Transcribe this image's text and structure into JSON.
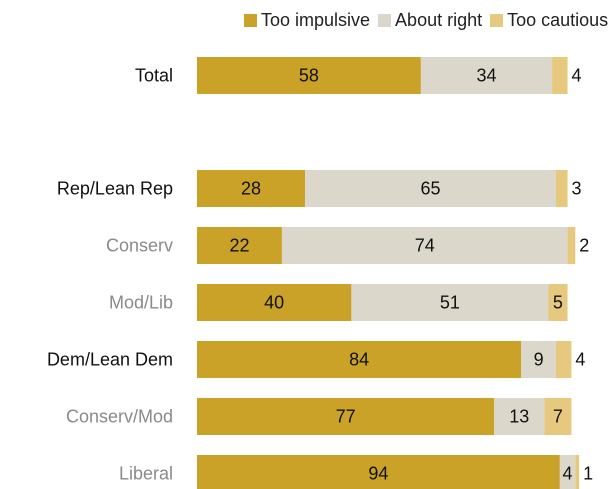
{
  "chart_data": {
    "type": "bar",
    "orientation": "horizontal",
    "stacked": true,
    "title": "",
    "legend_position": "top",
    "categories": [
      "Total",
      "Rep/Lean Rep",
      "Conserv",
      "Mod/Lib",
      "Dem/Lean Dem",
      "Conserv/Mod",
      "Liberal"
    ],
    "category_emphasis": [
      "bold",
      "bold",
      "subgroup",
      "subgroup",
      "bold",
      "subgroup",
      "subgroup"
    ],
    "series": [
      {
        "name": "Too impulsive",
        "color": "#C9A227",
        "values": [
          58,
          28,
          22,
          40,
          84,
          77,
          94
        ]
      },
      {
        "name": "About right",
        "color": "#DBD8CB",
        "values": [
          34,
          65,
          74,
          51,
          9,
          13,
          4
        ]
      },
      {
        "name": "Too cautious",
        "color": "#E6C97F",
        "values": [
          4,
          3,
          2,
          5,
          4,
          7,
          1
        ]
      }
    ],
    "xlim": [
      0,
      100
    ],
    "grid": false
  },
  "colors": {
    "label_main": "#111111",
    "label_sub": "#8a8a8a",
    "value_text": "#111111"
  }
}
